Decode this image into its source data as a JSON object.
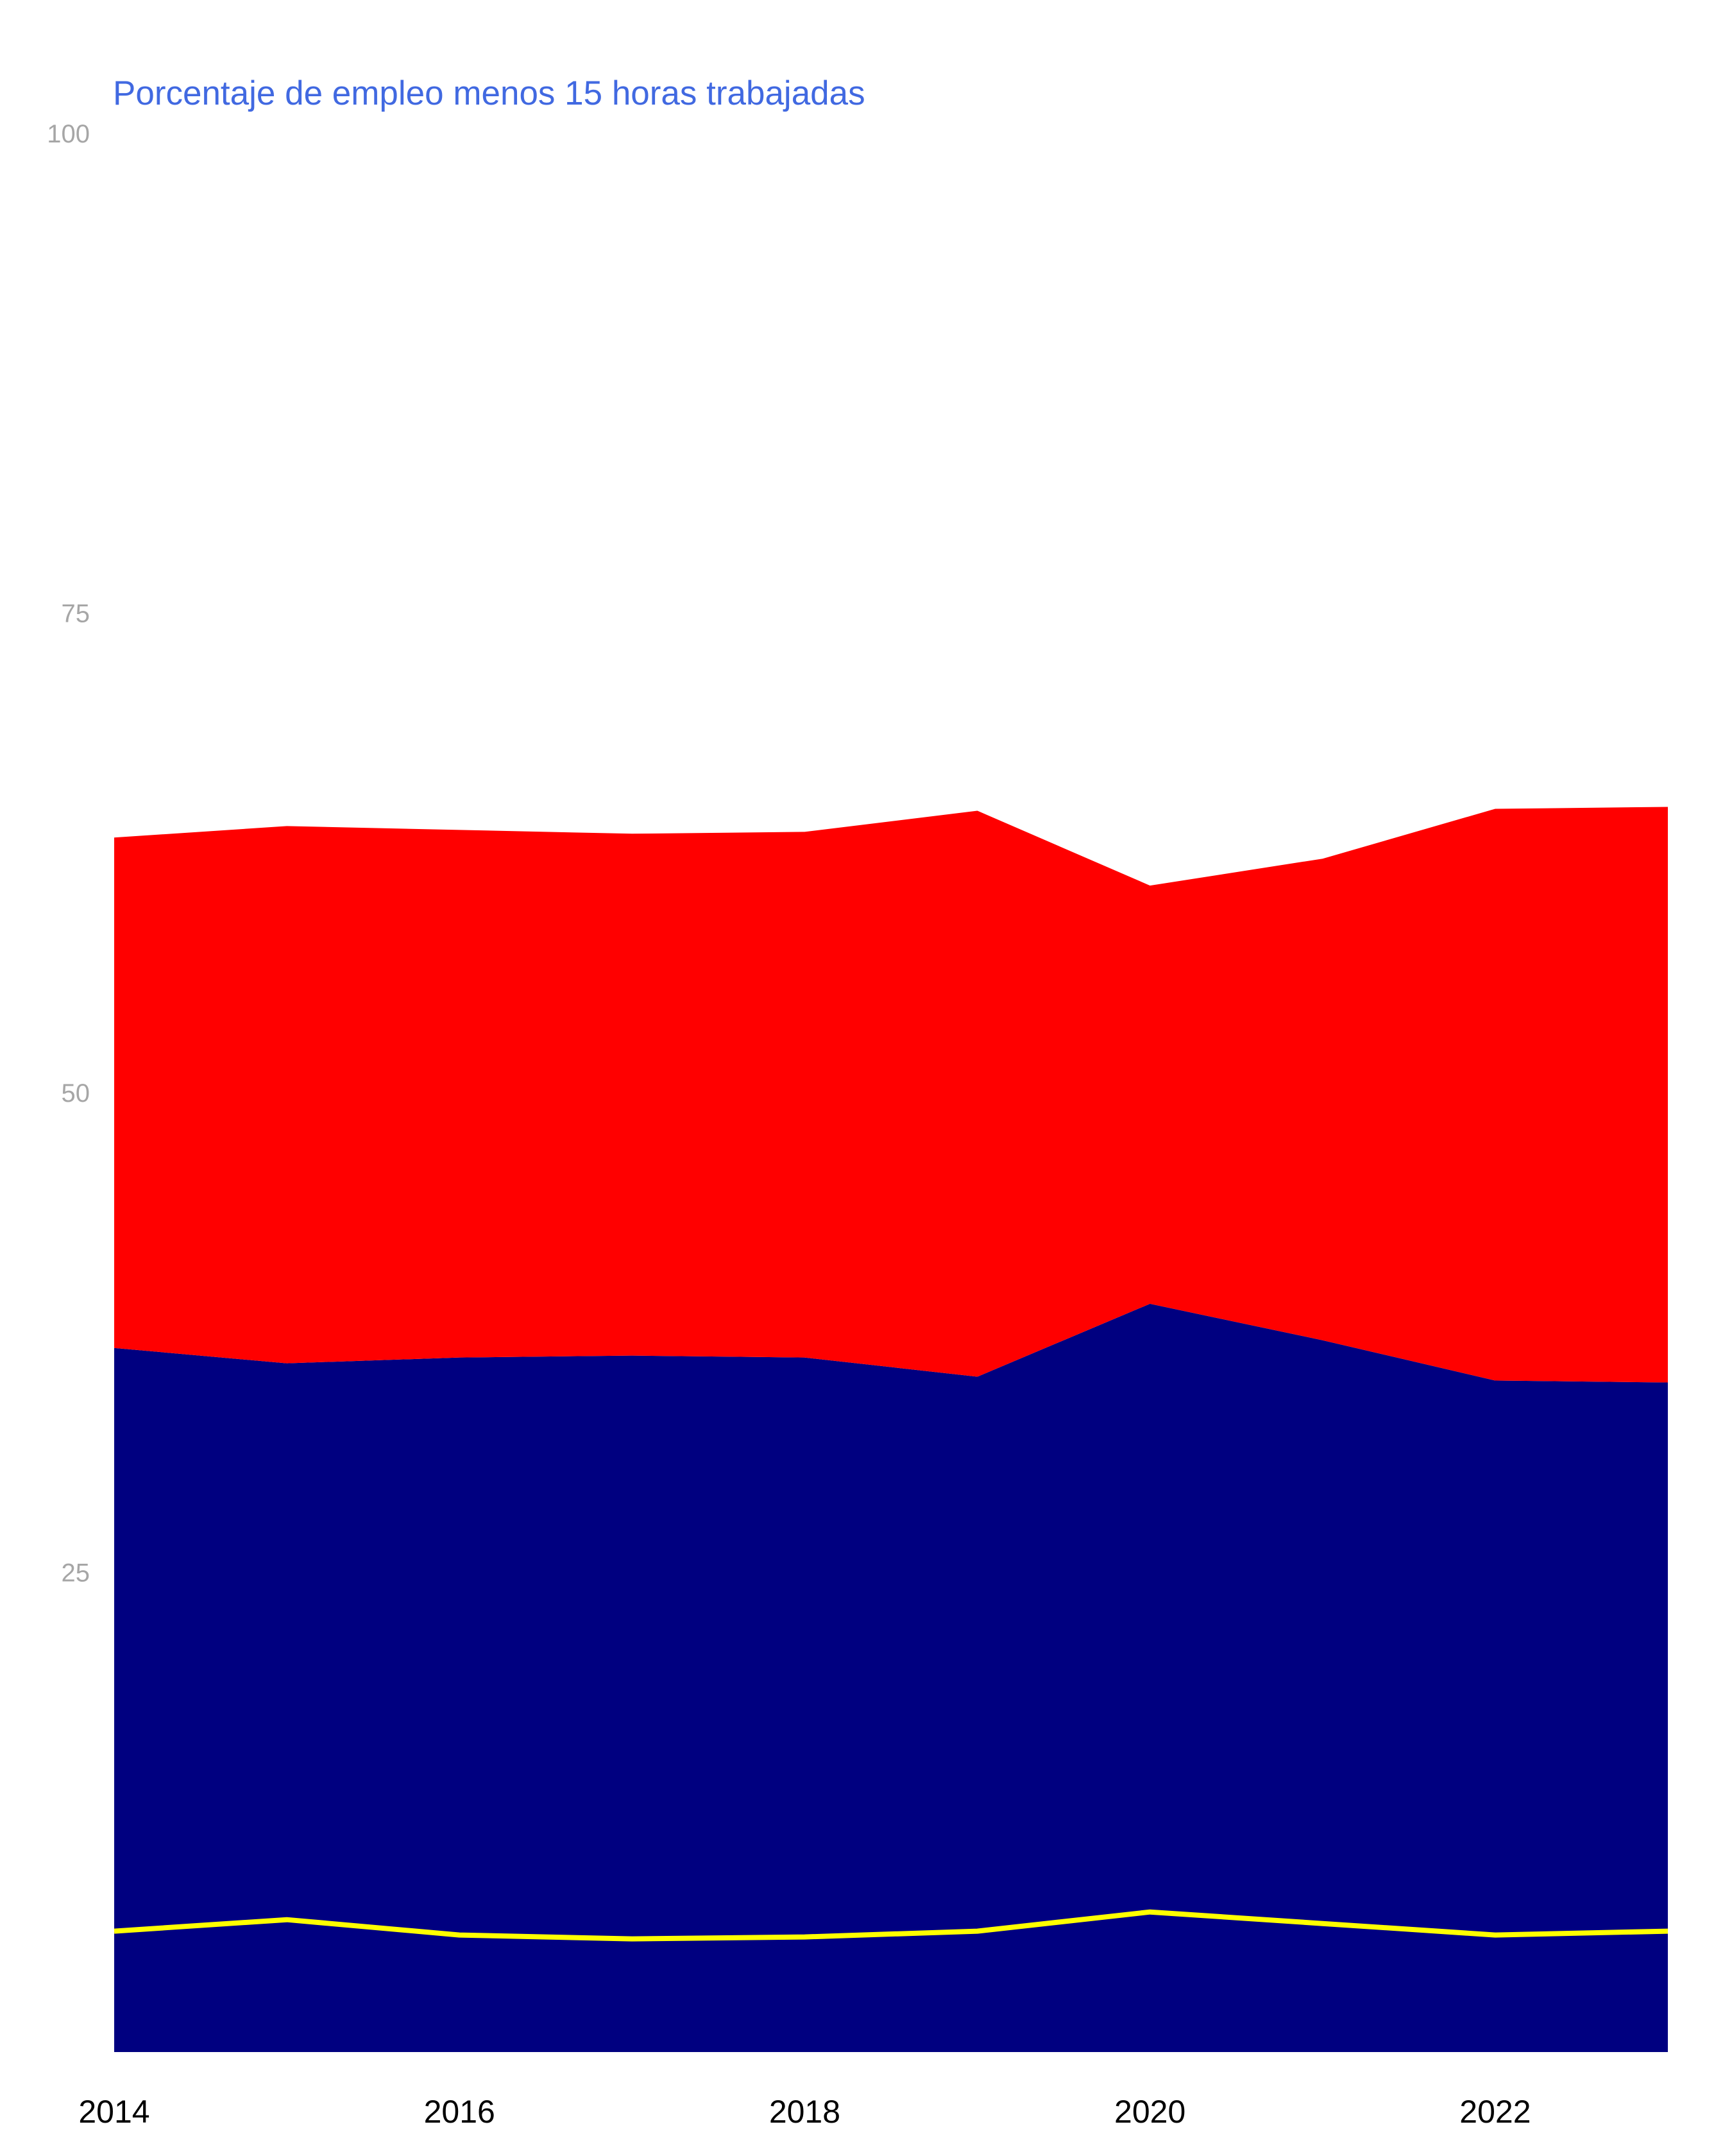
{
  "chart_data": {
    "type": "area",
    "title": "Porcentaje de empleo menos 15 horas trabajadas",
    "xlabel": "",
    "ylabel": "",
    "x": [
      2014,
      2015,
      2016,
      2017,
      2018,
      2019,
      2020,
      2021,
      2022,
      2023
    ],
    "x_ticks": [
      "2014",
      "2016",
      "2018",
      "2020",
      "2022"
    ],
    "y_ticks": [
      "25",
      "50",
      "75",
      "100"
    ],
    "xlim": [
      2014,
      2023
    ],
    "ylim": [
      0,
      100
    ],
    "stacking": "stacked",
    "grid": false,
    "legend": "none",
    "series": [
      {
        "kind": "area",
        "color": "#000080",
        "values": [
          36.7,
          35.9,
          36.2,
          36.3,
          36.2,
          35.2,
          39.0,
          37.1,
          35.0,
          34.9
        ]
      },
      {
        "kind": "area",
        "color": "#ff0000",
        "values": [
          26.6,
          28.0,
          27.5,
          27.2,
          27.4,
          29.5,
          21.8,
          25.1,
          29.8,
          30.0
        ]
      },
      {
        "kind": "line",
        "color": "#ffff00",
        "values": [
          6.3,
          6.9,
          6.1,
          5.9,
          6.0,
          6.3,
          7.3,
          6.7,
          6.1,
          6.3
        ]
      }
    ]
  }
}
